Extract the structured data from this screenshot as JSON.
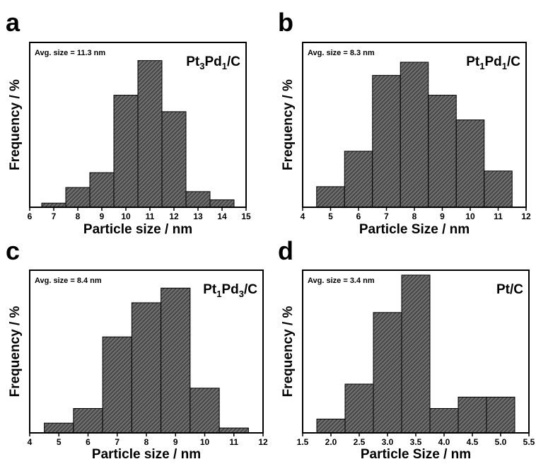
{
  "chart_data": [
    {
      "type": "bar",
      "panel": "a",
      "title": "Pt3Pd1/C",
      "title_parts": [
        {
          "t": "Pt",
          "sub": false
        },
        {
          "t": "3",
          "sub": true
        },
        {
          "t": "Pd",
          "sub": false
        },
        {
          "t": "1",
          "sub": true
        },
        {
          "t": "/C",
          "sub": false
        }
      ],
      "annotation": "Avg. size = 11.3 nm",
      "xlabel": "Particle size / nm",
      "ylabel": "Frequency / %",
      "xlim": [
        6,
        15
      ],
      "ylim": [
        0,
        100
      ],
      "xticks": [
        "6",
        "7",
        "8",
        "9",
        "10",
        "11",
        "12",
        "13",
        "14",
        "15"
      ],
      "xtick_values": [
        6,
        7,
        8,
        9,
        10,
        11,
        12,
        13,
        14,
        15
      ],
      "bar_width": 1,
      "x": [
        7,
        8,
        9,
        10,
        11,
        12,
        13,
        14
      ],
      "values": [
        2.5,
        12,
        21,
        68,
        89,
        58,
        9.5,
        4.5
      ],
      "grid": false
    },
    {
      "type": "bar",
      "panel": "b",
      "title": "Pt1Pd1/C",
      "title_parts": [
        {
          "t": "Pt",
          "sub": false
        },
        {
          "t": "1",
          "sub": true
        },
        {
          "t": "Pd",
          "sub": false
        },
        {
          "t": "1",
          "sub": true
        },
        {
          "t": "/C",
          "sub": false
        }
      ],
      "annotation": "Avg. size = 8.3 nm",
      "xlabel": "Particle Size / nm",
      "ylabel": "Frequency / %",
      "xlim": [
        4,
        12
      ],
      "ylim": [
        0,
        100
      ],
      "xticks": [
        "4",
        "5",
        "6",
        "7",
        "8",
        "9",
        "10",
        "11",
        "12"
      ],
      "xtick_values": [
        4,
        5,
        6,
        7,
        8,
        9,
        10,
        11,
        12
      ],
      "bar_width": 1,
      "x": [
        5,
        6,
        7,
        8,
        9,
        10,
        11
      ],
      "values": [
        12.5,
        34,
        80,
        88,
        68,
        53,
        22
      ],
      "grid": false
    },
    {
      "type": "bar",
      "panel": "c",
      "title": "Pt1Pd3/C",
      "title_parts": [
        {
          "t": "Pt",
          "sub": false
        },
        {
          "t": "1",
          "sub": true
        },
        {
          "t": "Pd",
          "sub": false
        },
        {
          "t": "3",
          "sub": true
        },
        {
          "t": "/C",
          "sub": false
        }
      ],
      "annotation": "Avg. size = 8.4 nm",
      "xlabel": "Particle size / nm",
      "ylabel": "Frequency / %",
      "xlim": [
        4,
        12
      ],
      "ylim": [
        0,
        100
      ],
      "xticks": [
        "4",
        "5",
        "6",
        "7",
        "8",
        "9",
        "10",
        "11",
        "12"
      ],
      "xtick_values": [
        4,
        5,
        6,
        7,
        8,
        9,
        10,
        11,
        12
      ],
      "bar_width": 1,
      "x": [
        5,
        6,
        7,
        8,
        9,
        10,
        11
      ],
      "values": [
        6,
        15,
        59,
        80,
        89,
        27.5,
        3
      ],
      "grid": false
    },
    {
      "type": "bar",
      "panel": "d",
      "title": "Pt/C",
      "title_parts": [
        {
          "t": "Pt/C",
          "sub": false
        }
      ],
      "annotation": "Avg. size = 3.4 nm",
      "xlabel": "Particle Size / nm",
      "ylabel": "Frequency / %",
      "xlim": [
        1.5,
        5.5
      ],
      "ylim": [
        0,
        100
      ],
      "xticks": [
        "1.5",
        "2.0",
        "2.5",
        "3.0",
        "3.5",
        "4.0",
        "4.5",
        "5.0",
        "5.5"
      ],
      "xtick_values": [
        1.5,
        2.0,
        2.5,
        3.0,
        3.5,
        4.0,
        4.5,
        5.0,
        5.5
      ],
      "bar_width": 0.5,
      "x": [
        2.0,
        2.5,
        3.0,
        3.5,
        4.0,
        4.5,
        5.0
      ],
      "values": [
        8.5,
        30,
        74,
        97,
        15,
        22,
        22
      ],
      "grid": false
    }
  ]
}
